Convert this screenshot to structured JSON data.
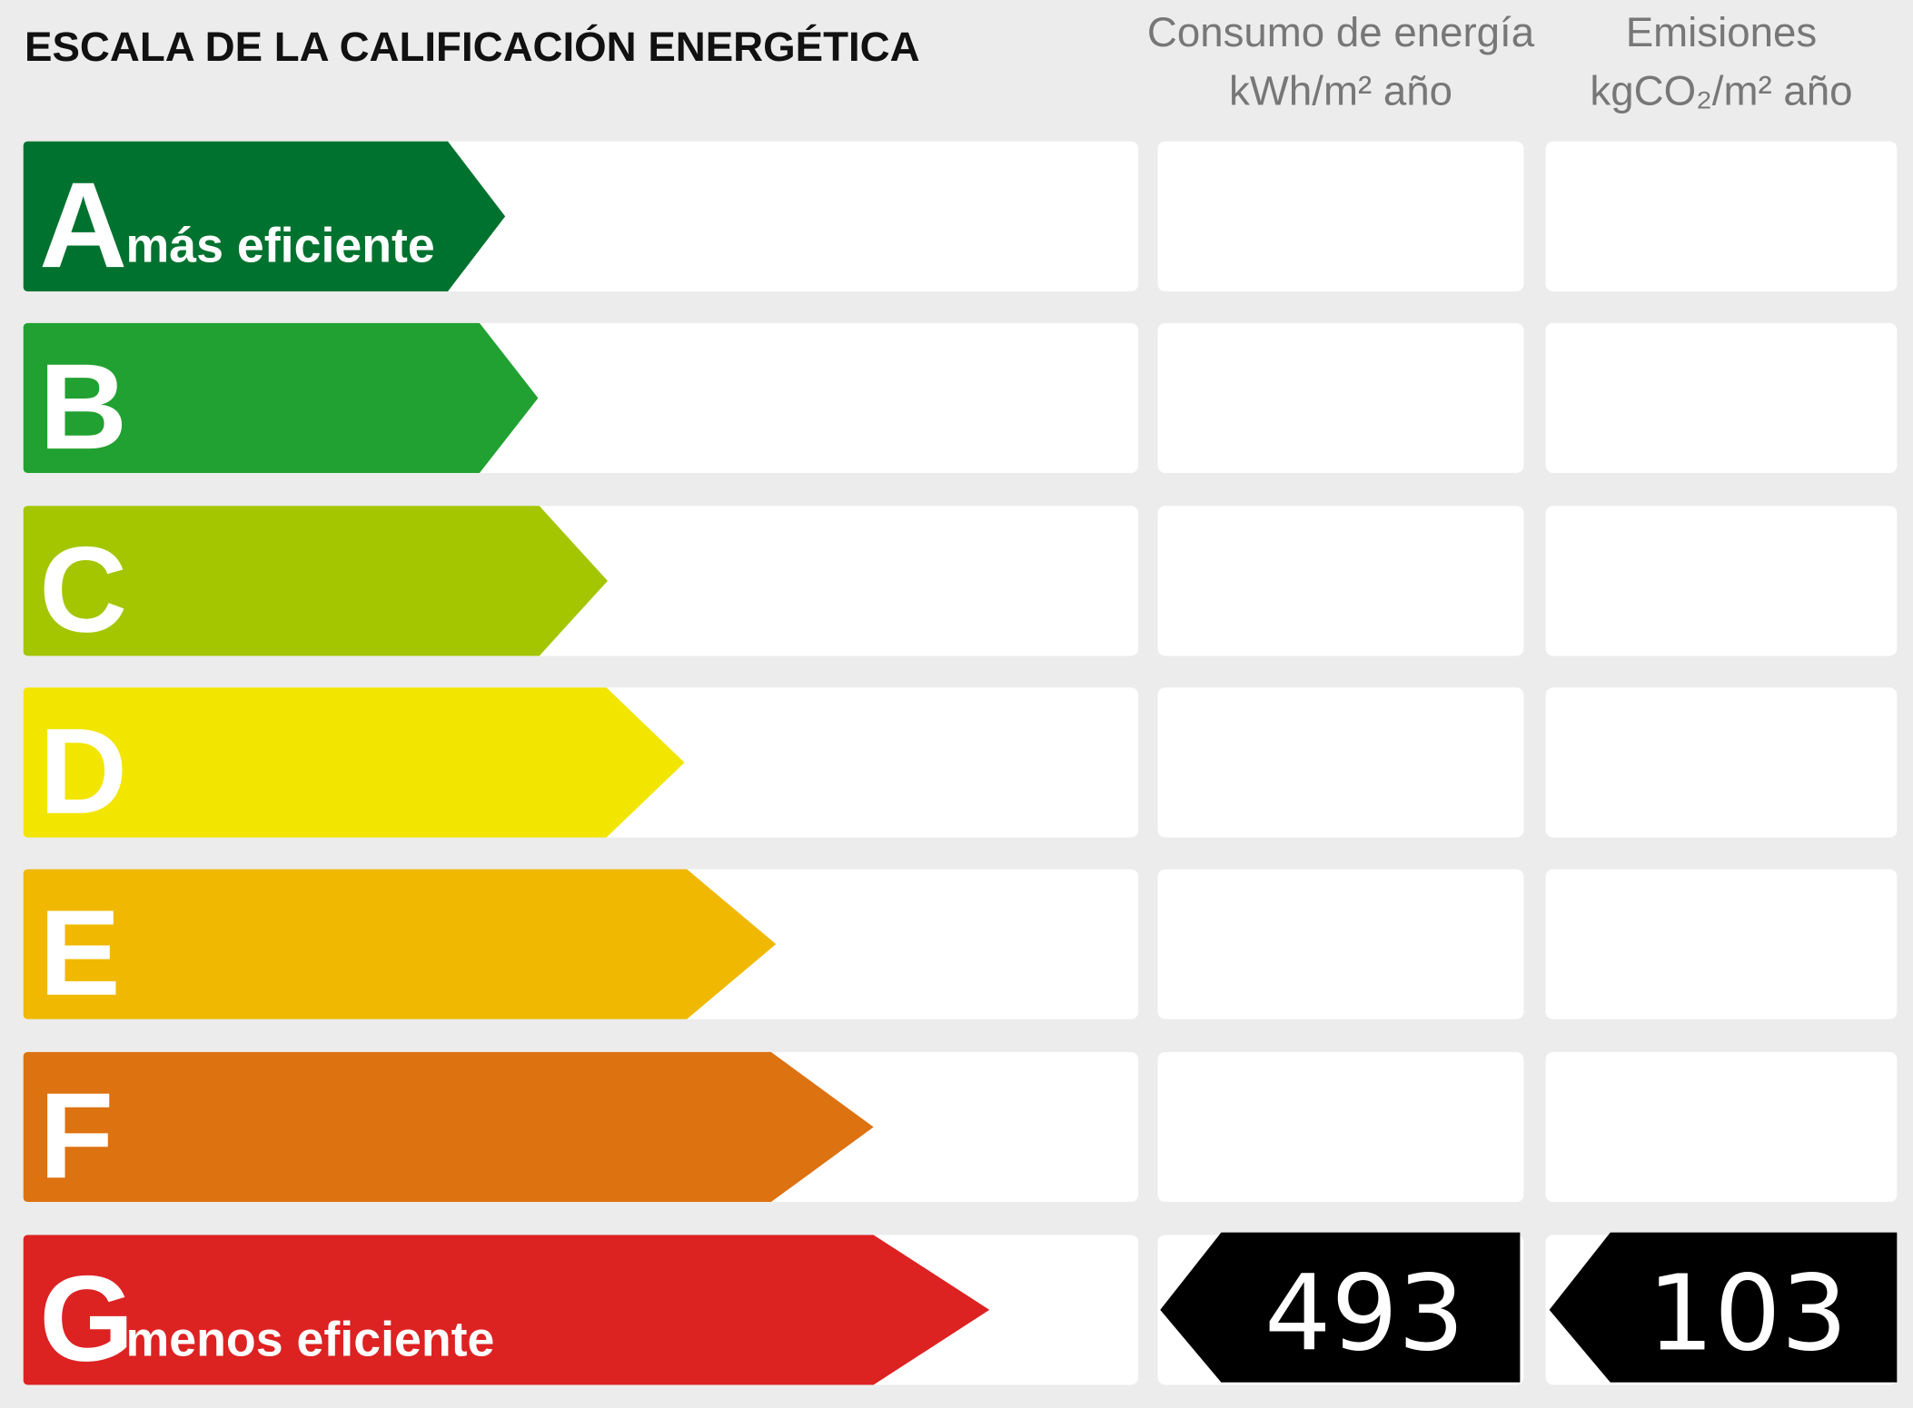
{
  "title": "ESCALA DE LA CALIFICACIÓN ENERGÉTICA",
  "columns": [
    {
      "label": "Consumo de energía",
      "unit": "kWh/m² año"
    },
    {
      "label": "Emisiones",
      "unit": "kgCO₂/m² año"
    }
  ],
  "rows": [
    {
      "letter": "A",
      "color": "#00722f",
      "note": "más eficiente"
    },
    {
      "letter": "B",
      "color": "#21a131"
    },
    {
      "letter": "C",
      "color": "#a3c600"
    },
    {
      "letter": "D",
      "color": "#f2e500"
    },
    {
      "letter": "E",
      "color": "#f0b800"
    },
    {
      "letter": "F",
      "color": "#dd7211"
    },
    {
      "letter": "G",
      "color": "#dd2222",
      "note": "menos eficiente",
      "consumo": 493,
      "emisiones": 103
    }
  ]
}
